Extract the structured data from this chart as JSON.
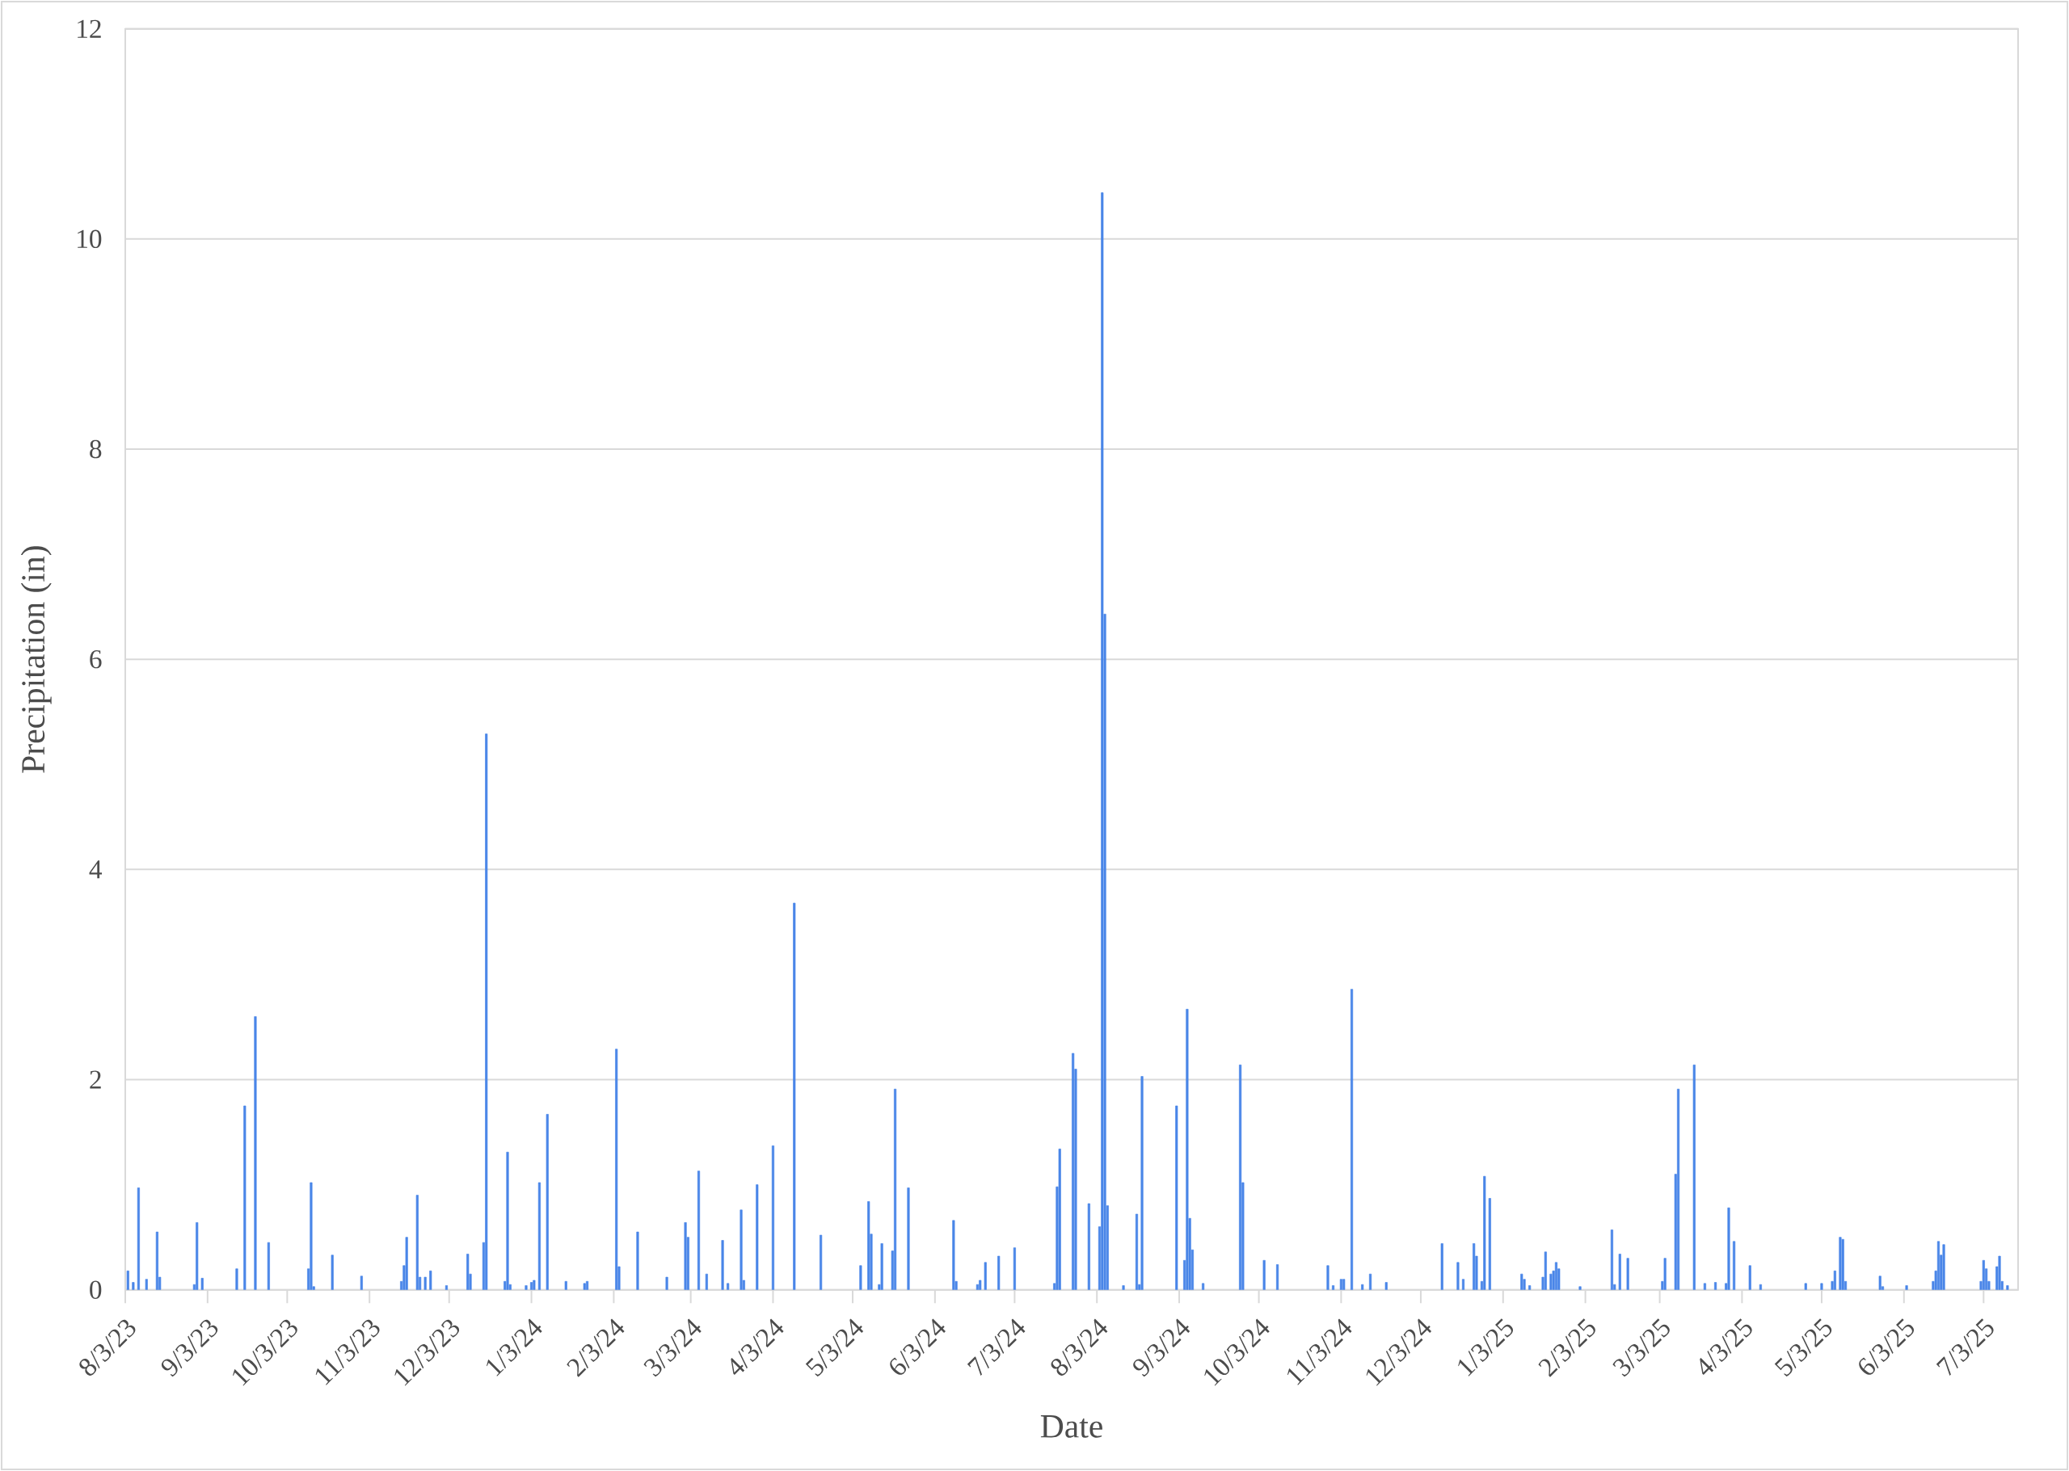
{
  "chart_data": {
    "type": "bar",
    "xlabel": "Date",
    "ylabel": "Precipitation (in)",
    "color": "#4a86e8",
    "grid": "y",
    "xlim": [
      "2023-08-03",
      "2025-07-16"
    ],
    "ylim": [
      0,
      12
    ],
    "yticks": [
      0,
      2,
      4,
      6,
      8,
      10,
      12
    ],
    "xticks": [
      {
        "value": "2023-08-03",
        "label": "8/3/23"
      },
      {
        "value": "2023-09-03",
        "label": "9/3/23"
      },
      {
        "value": "2023-10-03",
        "label": "10/3/23"
      },
      {
        "value": "2023-11-03",
        "label": "11/3/23"
      },
      {
        "value": "2023-12-03",
        "label": "12/3/23"
      },
      {
        "value": "2024-01-03",
        "label": "1/3/24"
      },
      {
        "value": "2024-02-03",
        "label": "2/3/24"
      },
      {
        "value": "2024-03-03",
        "label": "3/3/24"
      },
      {
        "value": "2024-04-03",
        "label": "4/3/24"
      },
      {
        "value": "2024-05-03",
        "label": "5/3/24"
      },
      {
        "value": "2024-06-03",
        "label": "6/3/24"
      },
      {
        "value": "2024-07-03",
        "label": "7/3/24"
      },
      {
        "value": "2024-08-03",
        "label": "8/3/24"
      },
      {
        "value": "2024-09-03",
        "label": "9/3/24"
      },
      {
        "value": "2024-10-03",
        "label": "10/3/24"
      },
      {
        "value": "2024-11-03",
        "label": "11/3/24"
      },
      {
        "value": "2024-12-03",
        "label": "12/3/24"
      },
      {
        "value": "2025-01-03",
        "label": "1/3/25"
      },
      {
        "value": "2025-02-03",
        "label": "2/3/25"
      },
      {
        "value": "2025-03-03",
        "label": "3/3/25"
      },
      {
        "value": "2025-04-03",
        "label": "4/3/25"
      },
      {
        "value": "2025-05-03",
        "label": "5/3/25"
      },
      {
        "value": "2025-06-03",
        "label": "6/3/25"
      },
      {
        "value": "2025-07-03",
        "label": "7/3/25"
      }
    ],
    "x": [
      "2023-08-04",
      "2023-08-06",
      "2023-08-08",
      "2023-08-11",
      "2023-08-15",
      "2023-08-16",
      "2023-08-29",
      "2023-08-30",
      "2023-09-01",
      "2023-09-14",
      "2023-09-17",
      "2023-09-21",
      "2023-09-26",
      "2023-10-11",
      "2023-10-12",
      "2023-10-13",
      "2023-10-20",
      "2023-10-31",
      "2023-11-15",
      "2023-11-16",
      "2023-11-17",
      "2023-11-21",
      "2023-11-22",
      "2023-11-24",
      "2023-11-26",
      "2023-12-02",
      "2023-12-10",
      "2023-12-11",
      "2023-12-16",
      "2023-12-17",
      "2023-12-24",
      "2023-12-25",
      "2023-12-26",
      "2024-01-01",
      "2024-01-03",
      "2024-01-04",
      "2024-01-06",
      "2024-01-09",
      "2024-01-16",
      "2024-01-23",
      "2024-01-24",
      "2024-02-04",
      "2024-02-05",
      "2024-02-12",
      "2024-02-23",
      "2024-03-01",
      "2024-03-02",
      "2024-03-06",
      "2024-03-09",
      "2024-03-15",
      "2024-03-17",
      "2024-03-22",
      "2024-03-23",
      "2024-03-28",
      "2024-04-03",
      "2024-04-11",
      "2024-04-21",
      "2024-05-06",
      "2024-05-09",
      "2024-05-10",
      "2024-05-13",
      "2024-05-14",
      "2024-05-18",
      "2024-05-19",
      "2024-05-24",
      "2024-06-10",
      "2024-06-11",
      "2024-06-19",
      "2024-06-20",
      "2024-06-22",
      "2024-06-27",
      "2024-07-03",
      "2024-07-18",
      "2024-07-19",
      "2024-07-20",
      "2024-07-25",
      "2024-07-26",
      "2024-07-31",
      "2024-08-04",
      "2024-08-05",
      "2024-08-06",
      "2024-08-07",
      "2024-08-13",
      "2024-08-18",
      "2024-08-19",
      "2024-08-20",
      "2024-09-02",
      "2024-09-05",
      "2024-09-06",
      "2024-09-07",
      "2024-09-08",
      "2024-09-12",
      "2024-09-26",
      "2024-09-27",
      "2024-10-05",
      "2024-10-10",
      "2024-10-29",
      "2024-10-31",
      "2024-11-03",
      "2024-11-04",
      "2024-11-07",
      "2024-11-11",
      "2024-11-14",
      "2024-11-20",
      "2024-12-11",
      "2024-12-17",
      "2024-12-19",
      "2024-12-23",
      "2024-12-24",
      "2024-12-26",
      "2024-12-27",
      "2024-12-29",
      "2025-01-10",
      "2025-01-11",
      "2025-01-13",
      "2025-01-18",
      "2025-01-19",
      "2025-01-21",
      "2025-01-22",
      "2025-01-23",
      "2025-01-24",
      "2025-02-01",
      "2025-02-13",
      "2025-02-14",
      "2025-02-16",
      "2025-02-19",
      "2025-03-04",
      "2025-03-05",
      "2025-03-09",
      "2025-03-10",
      "2025-03-16",
      "2025-03-20",
      "2025-03-24",
      "2025-03-28",
      "2025-03-29",
      "2025-03-31",
      "2025-04-06",
      "2025-04-10",
      "2025-04-27",
      "2025-05-03",
      "2025-05-07",
      "2025-05-08",
      "2025-05-10",
      "2025-05-11",
      "2025-05-12",
      "2025-05-25",
      "2025-05-26",
      "2025-06-04",
      "2025-06-14",
      "2025-06-15",
      "2025-06-16",
      "2025-06-17",
      "2025-06-18",
      "2025-07-02",
      "2025-07-03",
      "2025-07-04",
      "2025-07-05",
      "2025-07-08",
      "2025-07-09",
      "2025-07-10",
      "2025-07-12"
    ],
    "values": [
      0.18,
      0.07,
      0.97,
      0.1,
      0.55,
      0.12,
      0.05,
      0.64,
      0.11,
      0.2,
      1.75,
      2.6,
      0.45,
      0.2,
      1.02,
      0.03,
      0.33,
      0.13,
      0.08,
      0.23,
      0.5,
      0.9,
      0.12,
      0.12,
      0.18,
      0.04,
      0.34,
      0.15,
      0.45,
      5.29,
      0.08,
      1.31,
      0.05,
      0.04,
      0.07,
      0.09,
      1.02,
      1.67,
      0.08,
      0.06,
      0.08,
      2.29,
      0.22,
      0.55,
      0.12,
      0.64,
      0.5,
      1.13,
      0.15,
      0.47,
      0.06,
      0.76,
      0.09,
      1.0,
      1.37,
      3.68,
      0.52,
      0.23,
      0.84,
      0.53,
      0.05,
      0.44,
      0.37,
      1.91,
      0.97,
      0.66,
      0.08,
      0.05,
      0.09,
      0.26,
      0.32,
      0.4,
      0.06,
      0.98,
      1.34,
      2.25,
      2.1,
      0.82,
      0.6,
      10.44,
      6.43,
      0.8,
      0.04,
      0.72,
      0.05,
      2.03,
      1.75,
      0.28,
      2.67,
      0.68,
      0.38,
      0.06,
      2.14,
      1.02,
      0.28,
      0.24,
      0.23,
      0.04,
      0.1,
      0.1,
      2.86,
      0.05,
      0.15,
      0.07,
      0.44,
      0.26,
      0.1,
      0.44,
      0.32,
      0.08,
      1.08,
      0.87,
      0.15,
      0.1,
      0.04,
      0.12,
      0.36,
      0.15,
      0.18,
      0.26,
      0.2,
      0.03,
      0.57,
      0.05,
      0.34,
      0.3,
      0.08,
      0.3,
      1.1,
      1.91,
      2.14,
      0.06,
      0.07,
      0.06,
      0.78,
      0.46,
      0.23,
      0.05,
      0.06,
      0.06,
      0.08,
      0.18,
      0.5,
      0.48,
      0.08,
      0.13,
      0.03,
      0.04,
      0.08,
      0.18,
      0.46,
      0.33,
      0.43,
      0.08,
      0.28,
      0.2,
      0.08,
      0.22,
      0.32,
      0.08,
      0.04
    ]
  }
}
